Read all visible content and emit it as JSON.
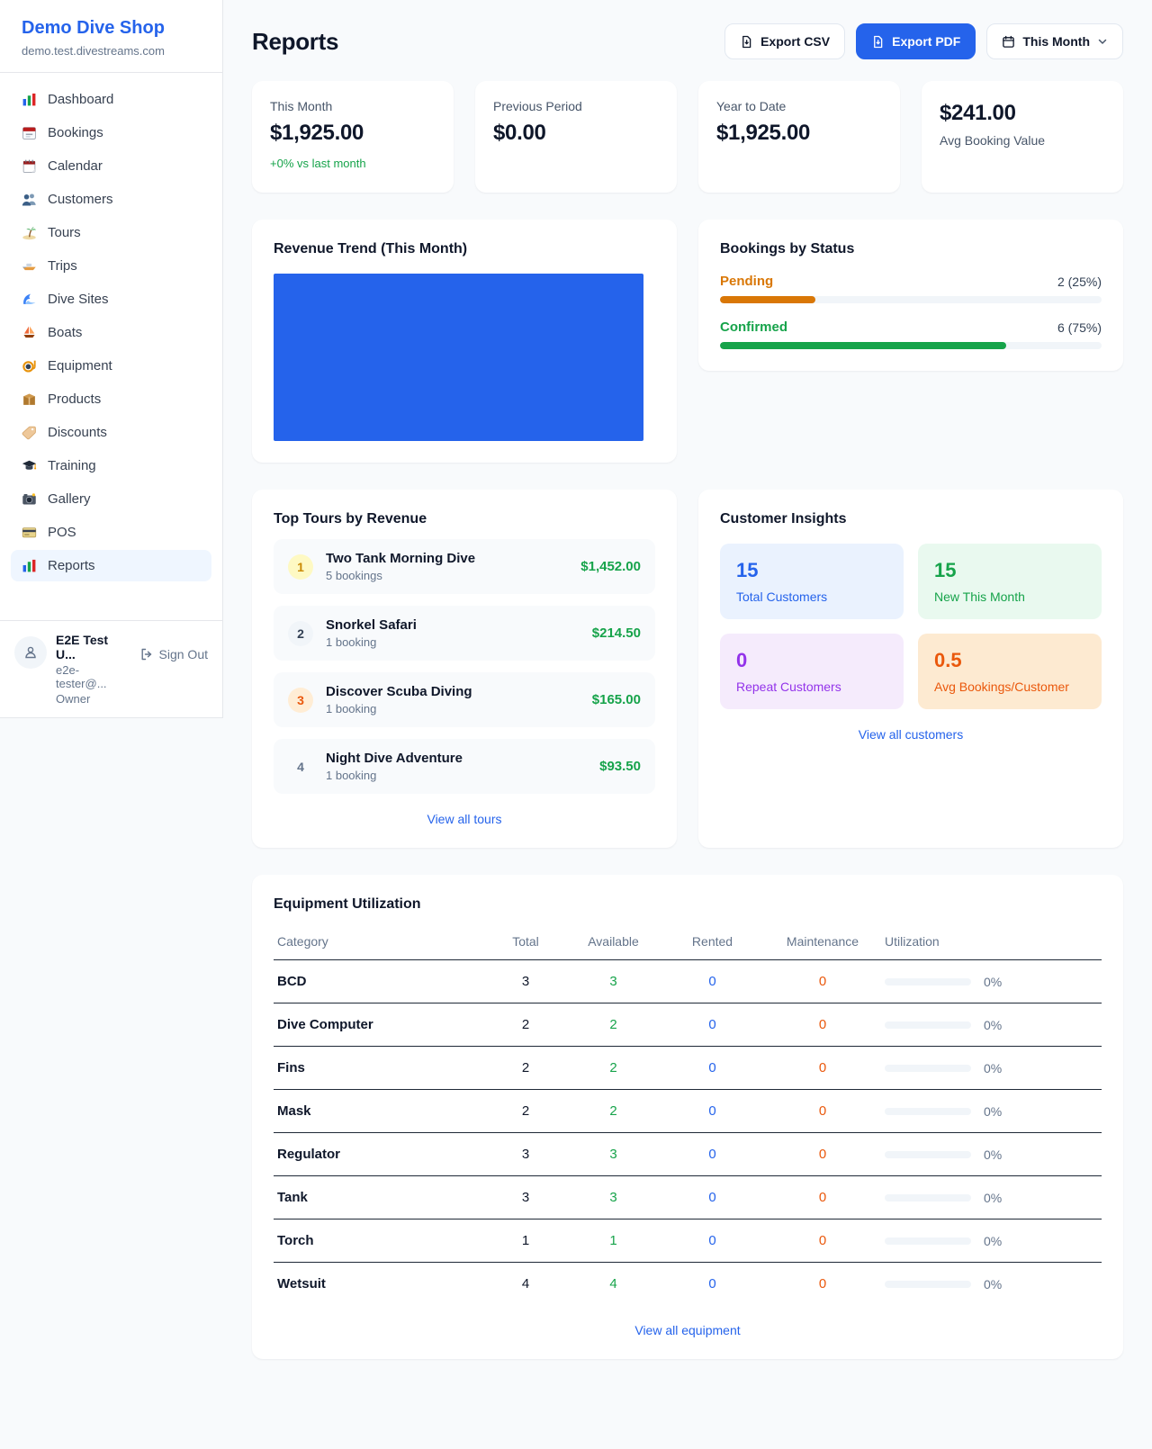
{
  "sidebar": {
    "shop_name": "Demo Dive Shop",
    "shop_domain": "demo.test.divestreams.com",
    "items": [
      {
        "label": "Dashboard",
        "icon": "bar-chart-icon"
      },
      {
        "label": "Bookings",
        "icon": "calendar-date-icon"
      },
      {
        "label": "Calendar",
        "icon": "spiral-calendar-icon"
      },
      {
        "label": "Customers",
        "icon": "people-icon"
      },
      {
        "label": "Tours",
        "icon": "island-icon"
      },
      {
        "label": "Trips",
        "icon": "speedboat-icon"
      },
      {
        "label": "Dive Sites",
        "icon": "wave-icon"
      },
      {
        "label": "Boats",
        "icon": "sailboat-icon"
      },
      {
        "label": "Equipment",
        "icon": "dive-mask-icon"
      },
      {
        "label": "Products",
        "icon": "package-icon"
      },
      {
        "label": "Discounts",
        "icon": "tag-icon"
      },
      {
        "label": "Training",
        "icon": "graduation-cap-icon"
      },
      {
        "label": "Gallery",
        "icon": "camera-icon"
      },
      {
        "label": "POS",
        "icon": "credit-card-icon"
      },
      {
        "label": "Reports",
        "icon": "report-icon",
        "active": true
      }
    ],
    "user": {
      "name": "E2E Test U...",
      "email": "e2e-tester@...",
      "role": "Owner",
      "sign_out_label": "Sign Out"
    }
  },
  "header": {
    "title": "Reports",
    "export_csv_label": "Export CSV",
    "export_pdf_label": "Export PDF",
    "period_label": "This Month"
  },
  "stats": [
    {
      "label": "This Month",
      "value": "$1,925.00",
      "delta": "+0% vs last month"
    },
    {
      "label": "Previous Period",
      "value": "$0.00"
    },
    {
      "label": "Year to Date",
      "value": "$1,925.00"
    },
    {
      "label": "Avg Booking Value",
      "value": "$241.00"
    }
  ],
  "revenue_trend": {
    "title": "Revenue Trend (This Month)",
    "bar_color": "#2563eb"
  },
  "bookings_by_status": {
    "title": "Bookings by Status",
    "rows": [
      {
        "label": "Pending",
        "value": "2 (25%)",
        "pct": 25,
        "color": "#d97706"
      },
      {
        "label": "Confirmed",
        "value": "6 (75%)",
        "pct": 75,
        "color": "#16a34a"
      }
    ]
  },
  "top_tours": {
    "title": "Top Tours by Revenue",
    "rows": [
      {
        "rank": "1",
        "name": "Two Tank Morning Dive",
        "bookings": "5 bookings",
        "amount": "$1,452.00"
      },
      {
        "rank": "2",
        "name": "Snorkel Safari",
        "bookings": "1 booking",
        "amount": "$214.50"
      },
      {
        "rank": "3",
        "name": "Discover Scuba Diving",
        "bookings": "1 booking",
        "amount": "$165.00"
      },
      {
        "rank": "4",
        "name": "Night Dive Adventure",
        "bookings": "1 booking",
        "amount": "$93.50"
      }
    ],
    "link": "View all tours"
  },
  "customer_insights": {
    "title": "Customer Insights",
    "tiles": [
      {
        "value": "15",
        "label": "Total Customers",
        "theme": "blue"
      },
      {
        "value": "15",
        "label": "New This Month",
        "theme": "green"
      },
      {
        "value": "0",
        "label": "Repeat Customers",
        "theme": "purple"
      },
      {
        "value": "0.5",
        "label": "Avg Bookings/Customer",
        "theme": "orange"
      }
    ],
    "link": "View all customers"
  },
  "equipment": {
    "title": "Equipment Utilization",
    "columns": [
      "Category",
      "Total",
      "Available",
      "Rented",
      "Maintenance",
      "Utilization"
    ],
    "rows": [
      {
        "category": "BCD",
        "total": "3",
        "available": "3",
        "rented": "0",
        "maintenance": "0",
        "utilization": "0%"
      },
      {
        "category": "Dive Computer",
        "total": "2",
        "available": "2",
        "rented": "0",
        "maintenance": "0",
        "utilization": "0%"
      },
      {
        "category": "Fins",
        "total": "2",
        "available": "2",
        "rented": "0",
        "maintenance": "0",
        "utilization": "0%"
      },
      {
        "category": "Mask",
        "total": "2",
        "available": "2",
        "rented": "0",
        "maintenance": "0",
        "utilization": "0%"
      },
      {
        "category": "Regulator",
        "total": "3",
        "available": "3",
        "rented": "0",
        "maintenance": "0",
        "utilization": "0%"
      },
      {
        "category": "Tank",
        "total": "3",
        "available": "3",
        "rented": "0",
        "maintenance": "0",
        "utilization": "0%"
      },
      {
        "category": "Torch",
        "total": "1",
        "available": "1",
        "rented": "0",
        "maintenance": "0",
        "utilization": "0%"
      },
      {
        "category": "Wetsuit",
        "total": "4",
        "available": "4",
        "rented": "0",
        "maintenance": "0",
        "utilization": "0%"
      }
    ],
    "link": "View all equipment"
  },
  "colors": {
    "accent_blue": "#2563eb",
    "green": "#16a34a",
    "amber": "#d97706",
    "orange": "#ea580c",
    "purple": "#9333ea"
  }
}
